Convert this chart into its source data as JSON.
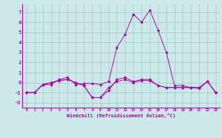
{
  "xlabel": "Windchill (Refroidissement éolien,°C)",
  "bg_color": "#cce8e8",
  "grid_color": "#aacece",
  "line_color": "#aa00aa",
  "x": [
    0,
    1,
    2,
    3,
    4,
    5,
    6,
    7,
    8,
    9,
    10,
    11,
    12,
    13,
    14,
    15,
    16,
    17,
    18,
    19,
    20,
    21,
    22,
    23
  ],
  "series": [
    [
      -1,
      -1,
      -0.2,
      -0.2,
      0.3,
      0.5,
      -0.2,
      -0.1,
      -0.1,
      -0.2,
      0.1,
      3.5,
      4.8,
      6.8,
      6.0,
      7.2,
      5.2,
      3.0,
      -0.3,
      -0.3,
      -0.5,
      -0.6,
      0.1,
      -1.0
    ],
    [
      -1,
      -1,
      -0.2,
      0.0,
      0.2,
      0.3,
      0.0,
      -0.3,
      -1.5,
      -1.5,
      -0.8,
      0.3,
      0.5,
      0.1,
      0.3,
      0.3,
      -0.3,
      -0.5,
      -0.5,
      -0.5,
      -0.5,
      -0.5,
      0.1,
      -1.0
    ],
    [
      -1,
      -1,
      -0.2,
      0.0,
      0.2,
      0.3,
      0.0,
      -0.3,
      -1.5,
      -1.5,
      -0.5,
      0.1,
      0.3,
      0.0,
      0.2,
      0.2,
      -0.3,
      -0.5,
      -0.5,
      -0.5,
      -0.5,
      -0.5,
      0.1,
      -1.0
    ]
  ],
  "ylim": [
    -2.5,
    7.8
  ],
  "xlim": [
    -0.5,
    23.5
  ],
  "yticks": [
    -2,
    -1,
    0,
    1,
    2,
    3,
    4,
    5,
    6,
    7
  ],
  "xticks": [
    0,
    1,
    2,
    3,
    4,
    5,
    6,
    7,
    8,
    9,
    10,
    11,
    12,
    13,
    14,
    15,
    16,
    17,
    18,
    19,
    20,
    21,
    22,
    23
  ]
}
